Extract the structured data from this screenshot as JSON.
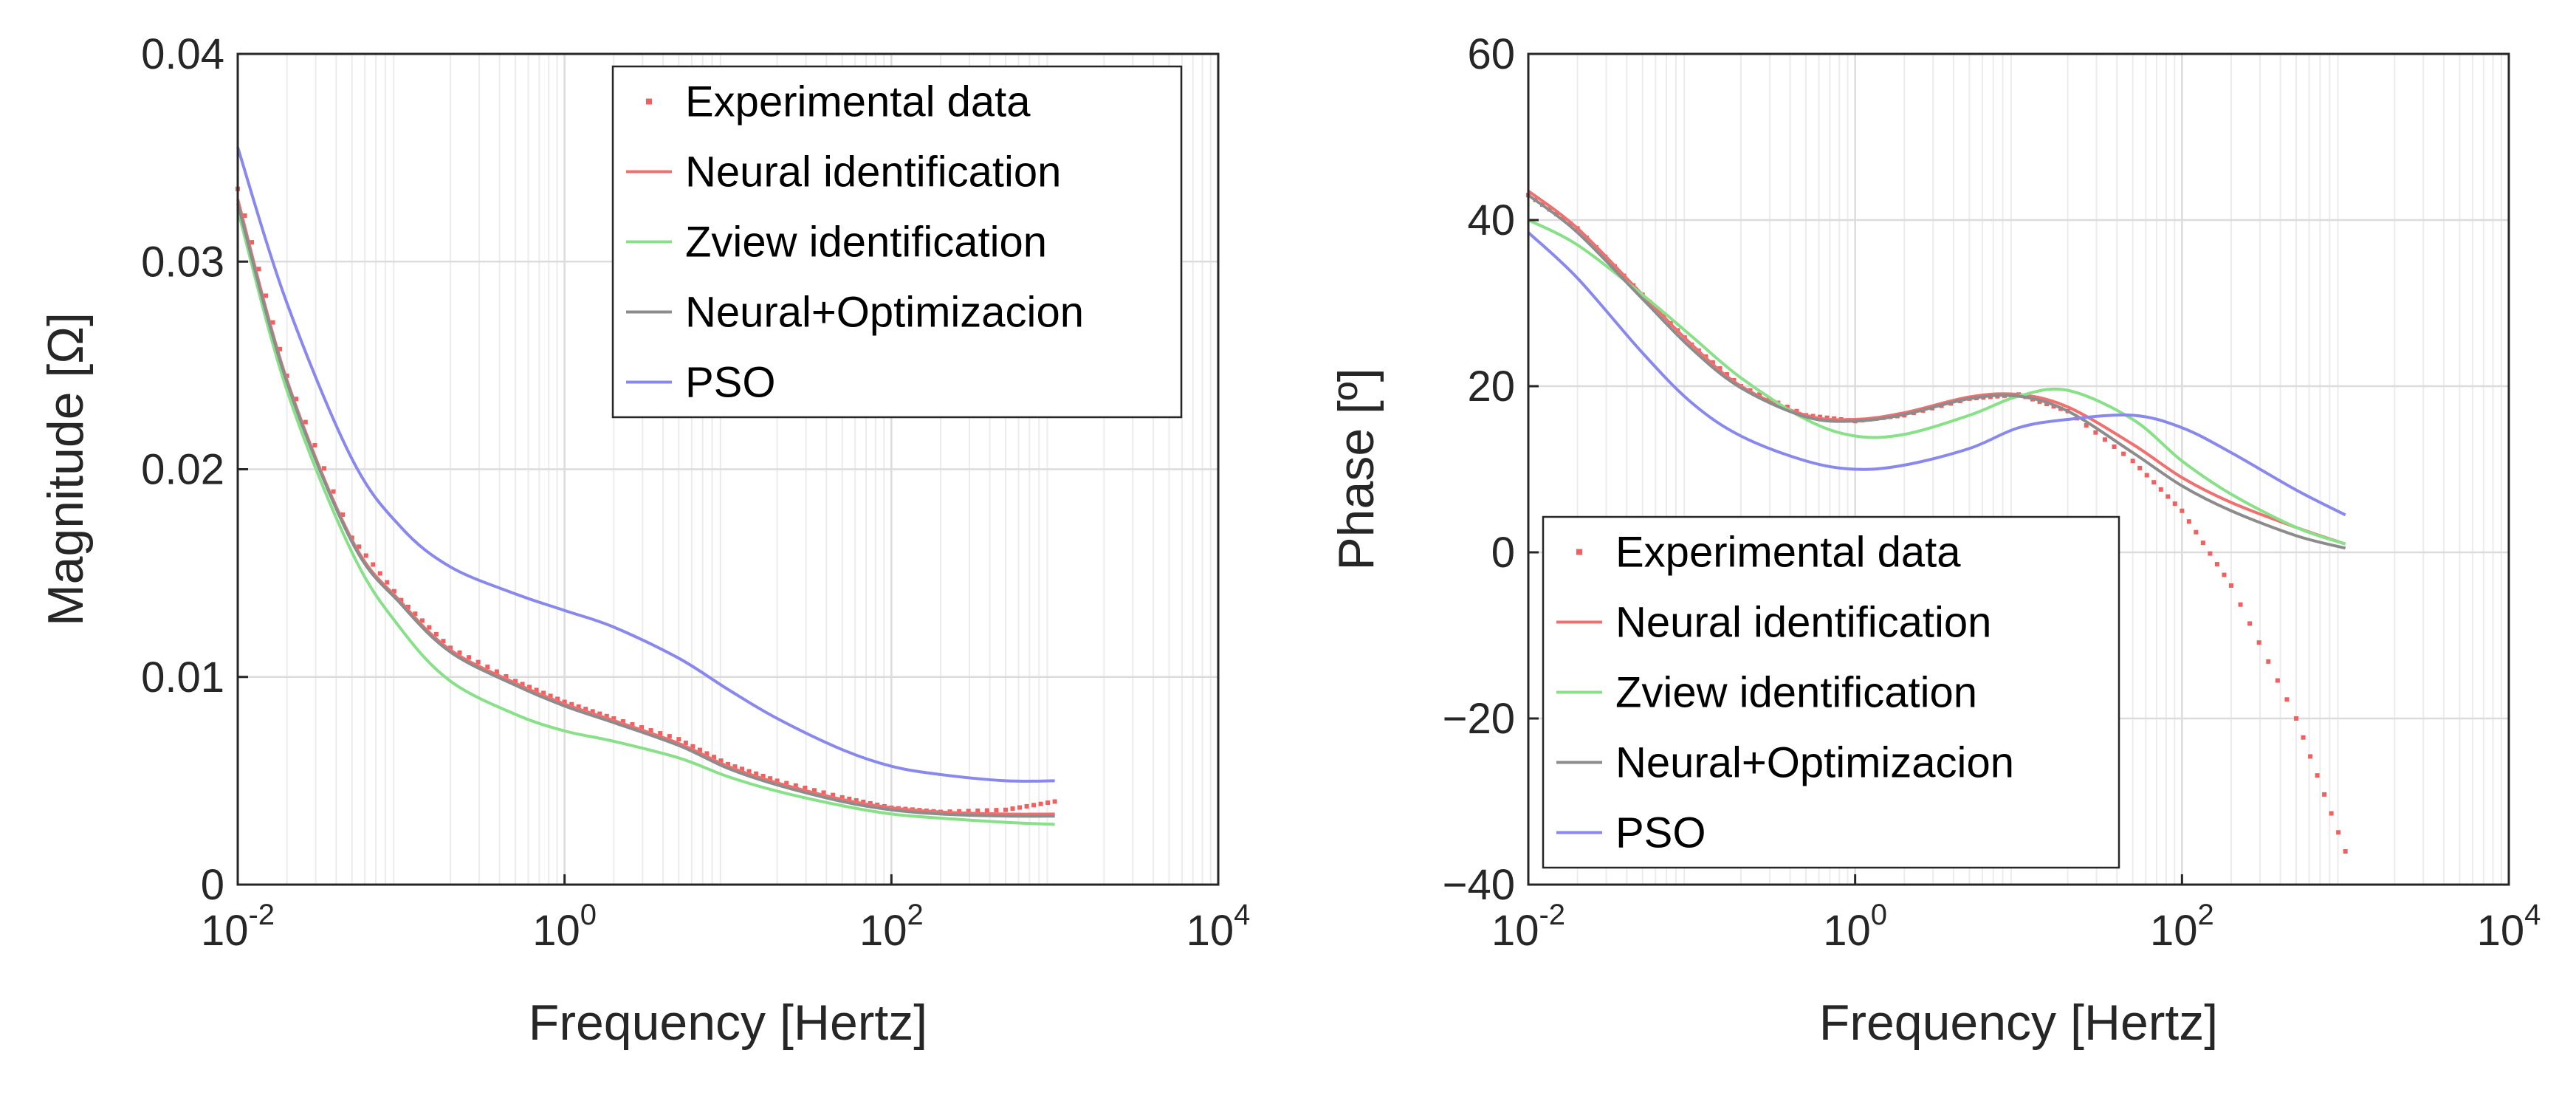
{
  "chart_data": [
    {
      "type": "line",
      "xscale": "log",
      "xlabel": "Frequency [Hertz]",
      "ylabel": "Magnitude [Ω]",
      "xlim": [
        0.01,
        10000
      ],
      "ylim": [
        0,
        0.04
      ],
      "xticks": [
        0.01,
        1,
        100,
        10000
      ],
      "xtick_labels": [
        {
          "base": "10",
          "exp": "-2"
        },
        {
          "base": "10",
          "exp": "0"
        },
        {
          "base": "10",
          "exp": "2"
        },
        {
          "base": "10",
          "exp": "4"
        }
      ],
      "yticks": [
        0,
        0.01,
        0.02,
        0.03,
        0.04
      ],
      "ytick_labels": [
        "0",
        "0.01",
        "0.02",
        "0.03",
        "0.04"
      ],
      "grid": true,
      "legend_position": "top-right",
      "series": [
        {
          "name": "Experimental data",
          "style": "points",
          "color": "#f06060",
          "x": [
            0.01,
            0.02,
            0.05,
            0.1,
            0.2,
            0.5,
            1,
            2,
            5,
            10,
            20,
            50,
            100,
            200,
            500,
            1000
          ],
          "y": [
            0.0335,
            0.0245,
            0.0167,
            0.0137,
            0.0114,
            0.0098,
            0.0088,
            0.008,
            0.007,
            0.0058,
            0.005,
            0.0042,
            0.0037,
            0.0035,
            0.0036,
            0.004
          ]
        },
        {
          "name": "Neural identification",
          "style": "line",
          "color": "#f07070",
          "x": [
            0.01,
            0.02,
            0.05,
            0.1,
            0.2,
            0.5,
            1,
            2,
            5,
            10,
            20,
            50,
            100,
            200,
            500,
            1000
          ],
          "y": [
            0.033,
            0.0243,
            0.0166,
            0.0136,
            0.0113,
            0.0097,
            0.0087,
            0.0079,
            0.0068,
            0.0057,
            0.0049,
            0.0041,
            0.0037,
            0.0035,
            0.0034,
            0.0034
          ]
        },
        {
          "name": "Zview identification",
          "style": "line",
          "color": "#88e088",
          "x": [
            0.01,
            0.02,
            0.05,
            0.1,
            0.2,
            0.5,
            1,
            2,
            5,
            10,
            20,
            50,
            100,
            200,
            500,
            1000
          ],
          "y": [
            0.0325,
            0.0238,
            0.016,
            0.0123,
            0.0098,
            0.0082,
            0.0074,
            0.0069,
            0.0061,
            0.0052,
            0.0045,
            0.0038,
            0.0034,
            0.0032,
            0.003,
            0.0029
          ]
        },
        {
          "name": "Neural+Optimizacion",
          "style": "line",
          "color": "#8c8c8c",
          "x": [
            0.01,
            0.02,
            0.05,
            0.1,
            0.2,
            0.5,
            1,
            2,
            5,
            10,
            20,
            50,
            100,
            200,
            500,
            1000
          ],
          "y": [
            0.0328,
            0.0242,
            0.0165,
            0.0135,
            0.0112,
            0.0096,
            0.0086,
            0.0078,
            0.0067,
            0.0056,
            0.0048,
            0.004,
            0.0036,
            0.0034,
            0.0033,
            0.0033
          ]
        },
        {
          "name": "PSO",
          "style": "line",
          "color": "#8888ee",
          "x": [
            0.01,
            0.02,
            0.05,
            0.1,
            0.2,
            0.5,
            1,
            2,
            5,
            10,
            20,
            50,
            100,
            200,
            500,
            1000
          ],
          "y": [
            0.0355,
            0.028,
            0.0205,
            0.0172,
            0.0153,
            0.014,
            0.0132,
            0.0124,
            0.0109,
            0.0094,
            0.008,
            0.0065,
            0.0057,
            0.0053,
            0.005,
            0.005
          ]
        }
      ]
    },
    {
      "type": "line",
      "xscale": "log",
      "xlabel": "Frequency [Hertz]",
      "ylabel": "Phase [º]",
      "xlim": [
        0.01,
        10000
      ],
      "ylim": [
        -40,
        60
      ],
      "xticks": [
        0.01,
        1,
        100,
        10000
      ],
      "xtick_labels": [
        {
          "base": "10",
          "exp": "-2"
        },
        {
          "base": "10",
          "exp": "0"
        },
        {
          "base": "10",
          "exp": "2"
        },
        {
          "base": "10",
          "exp": "4"
        }
      ],
      "yticks": [
        -40,
        -20,
        0,
        20,
        40,
        60
      ],
      "ytick_labels": [
        "−40",
        "−20",
        "0",
        "20",
        "40",
        "60"
      ],
      "grid": true,
      "legend_position": "bottom-left",
      "series": [
        {
          "name": "Experimental data",
          "style": "points",
          "color": "#f06060",
          "x": [
            0.01,
            0.02,
            0.05,
            0.1,
            0.2,
            0.5,
            1,
            2,
            5,
            10,
            20,
            50,
            100,
            200,
            500,
            1000
          ],
          "y": [
            43,
            39,
            31,
            25,
            20,
            16.5,
            15.8,
            16.5,
            18.5,
            19,
            17,
            11,
            5,
            -4,
            -20,
            -36
          ]
        },
        {
          "name": "Neural identification",
          "style": "line",
          "color": "#f07070",
          "x": [
            0.01,
            0.02,
            0.05,
            0.1,
            0.2,
            0.5,
            1,
            2,
            5,
            10,
            20,
            50,
            100,
            200,
            500,
            1000
          ],
          "y": [
            43.5,
            39,
            31,
            25,
            20,
            16.5,
            16,
            16.8,
            18.7,
            19,
            17.5,
            13,
            9,
            6,
            3,
            1
          ]
        },
        {
          "name": "Zview identification",
          "style": "line",
          "color": "#88e088",
          "x": [
            0.01,
            0.02,
            0.05,
            0.1,
            0.2,
            0.5,
            1,
            2,
            5,
            10,
            20,
            50,
            100,
            200,
            500,
            1000
          ],
          "y": [
            40,
            37,
            31,
            26,
            21,
            16,
            14,
            14.2,
            16.5,
            18.8,
            19.5,
            16,
            11,
            7,
            3,
            1
          ]
        },
        {
          "name": "Neural+Optimizacion",
          "style": "line",
          "color": "#8c8c8c",
          "x": [
            0.01,
            0.02,
            0.05,
            0.1,
            0.2,
            0.5,
            1,
            2,
            5,
            10,
            20,
            50,
            100,
            200,
            500,
            1000
          ],
          "y": [
            43,
            38.5,
            30.5,
            24.5,
            19.8,
            16.3,
            15.8,
            16.6,
            18.5,
            18.8,
            17,
            12,
            8,
            5,
            2,
            0.5
          ]
        },
        {
          "name": "PSO",
          "style": "line",
          "color": "#8888ee",
          "x": [
            0.01,
            0.02,
            0.05,
            0.1,
            0.2,
            0.5,
            1,
            2,
            5,
            10,
            20,
            50,
            100,
            200,
            500,
            1000
          ],
          "y": [
            38.5,
            33,
            24,
            18,
            14,
            11,
            10,
            10.5,
            12.5,
            15,
            16,
            16.5,
            15,
            12,
            7.5,
            4.5
          ]
        }
      ]
    }
  ]
}
